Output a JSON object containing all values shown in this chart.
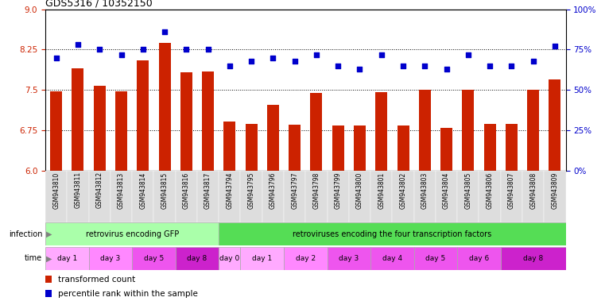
{
  "title": "GDS5316 / 10352150",
  "samples": [
    "GSM943810",
    "GSM943811",
    "GSM943812",
    "GSM943813",
    "GSM943814",
    "GSM943815",
    "GSM943816",
    "GSM943817",
    "GSM943794",
    "GSM943795",
    "GSM943796",
    "GSM943797",
    "GSM943798",
    "GSM943799",
    "GSM943800",
    "GSM943801",
    "GSM943802",
    "GSM943803",
    "GSM943804",
    "GSM943805",
    "GSM943806",
    "GSM943807",
    "GSM943808",
    "GSM943809"
  ],
  "bar_values": [
    7.47,
    7.9,
    7.58,
    7.47,
    8.05,
    8.38,
    7.83,
    7.84,
    6.92,
    6.87,
    7.22,
    6.85,
    7.44,
    6.84,
    6.84,
    7.46,
    6.84,
    7.5,
    6.8,
    7.5,
    6.87,
    6.87,
    7.5,
    7.7
  ],
  "dot_values": [
    70,
    78,
    75,
    72,
    75,
    86,
    75,
    75,
    65,
    68,
    70,
    68,
    72,
    65,
    63,
    72,
    65,
    65,
    63,
    72,
    65,
    65,
    68,
    77
  ],
  "ylim_left": [
    6.0,
    9.0
  ],
  "ylim_right": [
    0,
    100
  ],
  "yticks_left": [
    6.0,
    6.75,
    7.5,
    8.25,
    9.0
  ],
  "yticks_right": [
    0,
    25,
    50,
    75,
    100
  ],
  "bar_color": "#cc2200",
  "dot_color": "#0000cc",
  "background_color": "#ffffff",
  "infection_label_color": "#000000",
  "infection_groups": [
    {
      "label": "retrovirus encoding GFP",
      "start": 0,
      "end": 8,
      "color": "#aaffaa"
    },
    {
      "label": "retroviruses encoding the four transcription factors",
      "start": 8,
      "end": 24,
      "color": "#55dd55"
    }
  ],
  "time_groups": [
    {
      "label": "day 1",
      "start": 0,
      "end": 2,
      "color": "#ffaaff"
    },
    {
      "label": "day 3",
      "start": 2,
      "end": 4,
      "color": "#ff88ff"
    },
    {
      "label": "day 5",
      "start": 4,
      "end": 6,
      "color": "#ee55ee"
    },
    {
      "label": "day 8",
      "start": 6,
      "end": 8,
      "color": "#cc22cc"
    },
    {
      "label": "day 0",
      "start": 8,
      "end": 9,
      "color": "#ffaaff"
    },
    {
      "label": "day 1",
      "start": 9,
      "end": 11,
      "color": "#ffaaff"
    },
    {
      "label": "day 2",
      "start": 11,
      "end": 13,
      "color": "#ff88ff"
    },
    {
      "label": "day 3",
      "start": 13,
      "end": 15,
      "color": "#ee55ee"
    },
    {
      "label": "day 4",
      "start": 15,
      "end": 17,
      "color": "#ee55ee"
    },
    {
      "label": "day 5",
      "start": 17,
      "end": 19,
      "color": "#ee55ee"
    },
    {
      "label": "day 6",
      "start": 19,
      "end": 21,
      "color": "#ee55ee"
    },
    {
      "label": "day 8",
      "start": 21,
      "end": 24,
      "color": "#cc22cc"
    }
  ],
  "legend_items": [
    {
      "label": "transformed count",
      "color": "#cc2200"
    },
    {
      "label": "percentile rank within the sample",
      "color": "#0000cc"
    }
  ],
  "xtick_bg": "#dddddd",
  "sample_font_size": 5.5,
  "axis_font_size": 7.5
}
